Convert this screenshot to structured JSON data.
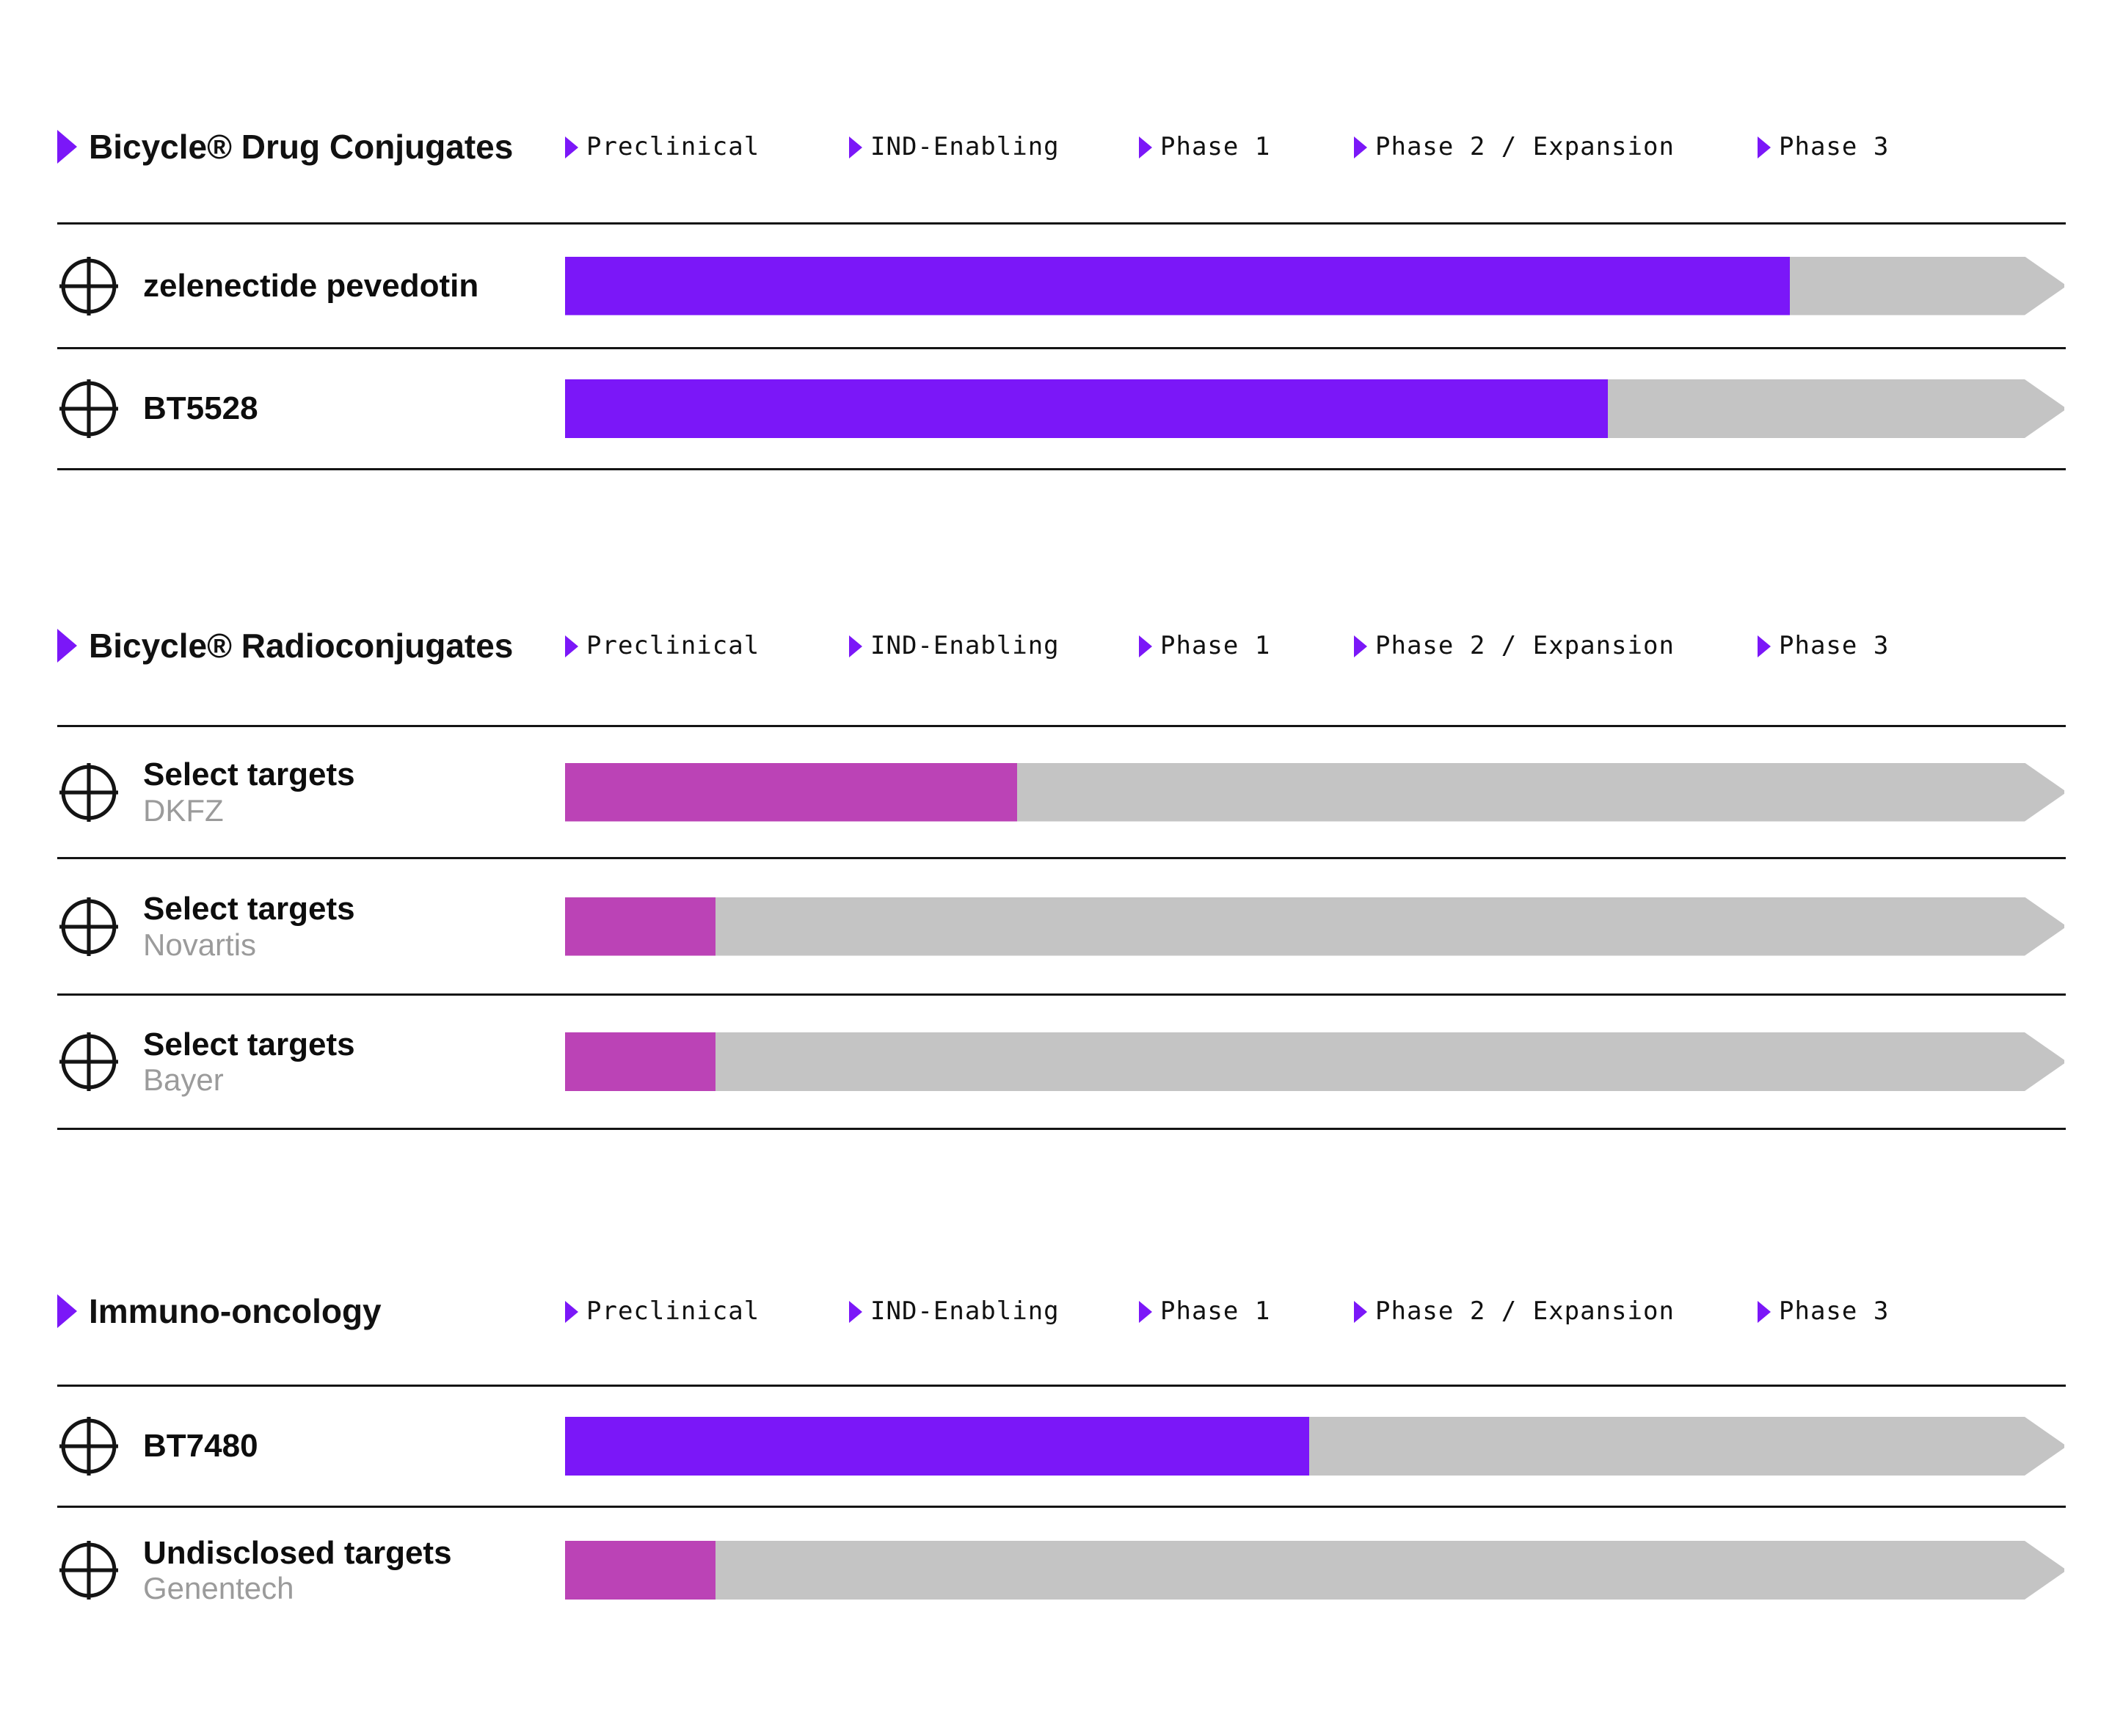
{
  "colors": {
    "purple": "#7b17f8",
    "magenta": "#bb43b6",
    "track": "#c4c4c4",
    "line": "#141414",
    "title_text": "#111111",
    "partner_text": "#9b9b9b"
  },
  "phases": [
    "Preclinical",
    "IND-Enabling",
    "Phase 1",
    "Phase 2 / Expansion",
    "Phase 3"
  ],
  "sections": [
    {
      "title": "Bicycle® Drug Conjugates",
      "rows": [
        {
          "name": "zelenectide pevedotin",
          "partner": "",
          "color": "purple",
          "progress_pct": 81.6,
          "stage": "Phase 3"
        },
        {
          "name": "BT5528",
          "partner": "",
          "color": "purple",
          "progress_pct": 69.5,
          "stage": "Phase 2 / Expansion"
        }
      ]
    },
    {
      "title": "Bicycle® Radioconjugates",
      "rows": [
        {
          "name": "Select targets",
          "partner": "DKFZ",
          "color": "magenta",
          "progress_pct": 30.1,
          "stage": "IND-Enabling"
        },
        {
          "name": "Select targets",
          "partner": "Novartis",
          "color": "magenta",
          "progress_pct": 10.0,
          "stage": "Preclinical"
        },
        {
          "name": "Select targets",
          "partner": "Bayer",
          "color": "magenta",
          "progress_pct": 10.0,
          "stage": "Preclinical"
        }
      ]
    },
    {
      "title": "Immuno-oncology",
      "rows": [
        {
          "name": "BT7480",
          "partner": "",
          "color": "purple",
          "progress_pct": 49.6,
          "stage": "Phase 1"
        },
        {
          "name": "Undisclosed targets",
          "partner": "Genentech",
          "color": "magenta",
          "progress_pct": 10.0,
          "stage": "Preclinical"
        }
      ]
    }
  ],
  "chart_data": {
    "type": "bar",
    "orientation": "horizontal",
    "x_axis_phases": [
      "Preclinical",
      "IND-Enabling",
      "Phase 1",
      "Phase 2 / Expansion",
      "Phase 3"
    ],
    "categories": [
      "zelenectide pevedotin",
      "BT5528",
      "Select targets (DKFZ)",
      "Select targets (Novartis)",
      "Select targets (Bayer)",
      "BT7480",
      "Undisclosed targets (Genentech)"
    ],
    "groups": [
      "Bicycle® Drug Conjugates",
      "Bicycle® Drug Conjugates",
      "Bicycle® Radioconjugates",
      "Bicycle® Radioconjugates",
      "Bicycle® Radioconjugates",
      "Immuno-oncology",
      "Immuno-oncology"
    ],
    "values": [
      81.6,
      69.5,
      30.1,
      10.0,
      10.0,
      49.6,
      10.0
    ],
    "value_unit": "percent of full track from Preclinical start to Phase 3 arrow tip",
    "stages_reached": [
      "Phase 3",
      "Phase 2 / Expansion",
      "IND-Enabling",
      "Preclinical",
      "Preclinical",
      "Phase 1",
      "Preclinical"
    ],
    "bar_colors": [
      "purple",
      "purple",
      "magenta",
      "magenta",
      "magenta",
      "purple",
      "magenta"
    ],
    "grid": false,
    "legend": false
  }
}
